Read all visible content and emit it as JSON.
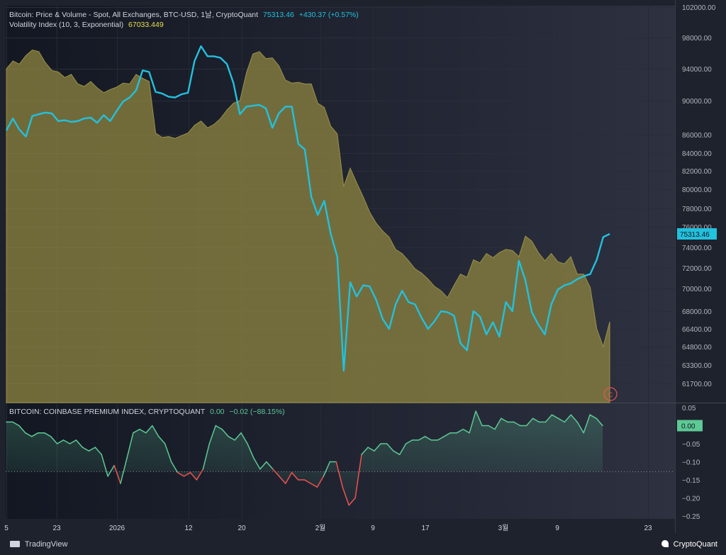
{
  "legend": {
    "price_title": "Bitcoin: Price & Volume - Spot, All Exchanges, BTC-USD, 1날, CryptoQuant",
    "price_value": "75313.46",
    "price_change": "+430.37 (+0.57%)",
    "vol_title": "Volatility Index (10, 3, Exponential)",
    "vol_value": "67033.449",
    "premium_title": "BITCOIN: COINBASE PREMIUM INDEX, CRYPTOQUANT",
    "premium_value": "0.00",
    "premium_change": "−0.02 (−88.15%)"
  },
  "footer": {
    "left_brand": "TradingView",
    "right_brand": "CryptoQuant"
  },
  "colors": {
    "background": "#1e222d",
    "price_line": "#22c1de",
    "volatility_fill": "#8a8240",
    "premium_up": "#5dc995",
    "premium_down": "#ef5350"
  },
  "icons": {
    "marker": "c-circle-icon",
    "tv_logo": "tradingview-logo-icon",
    "cq_logo": "cryptoquant-logo-icon"
  },
  "chart_data": [
    {
      "type": "line",
      "title": "Bitcoin: Price & Volume - Spot, All Exchanges, BTC-USD, 1날, CryptoQuant",
      "x_ticks": [
        "5",
        "23",
        "2026",
        "12",
        "20",
        "2월",
        "9",
        "17",
        "3월",
        "9",
        "23"
      ],
      "y_ticks": [
        "102000.00",
        "98000.00",
        "94000.00",
        "90000.00",
        "86000.00",
        "84000.00",
        "82000.00",
        "80000.00",
        "78000.00",
        "76000.00",
        "74000.00",
        "72000.00",
        "70000.00",
        "68000.00",
        "66400.00",
        "64800.00",
        "63300.00",
        "61700.00"
      ],
      "last_price_label": "75313.46",
      "series": [
        {
          "name": "Bitcoin: Price & Volume - Spot, All Exchanges, BTC-USD, 1날, CryptoQuant",
          "values": [
            86500,
            87900,
            86600,
            85800,
            88200,
            88400,
            88600,
            88500,
            87600,
            87700,
            87500,
            87600,
            87900,
            88000,
            87400,
            88300,
            87600,
            88800,
            89900,
            90400,
            91300,
            93800,
            93600,
            91100,
            90900,
            90500,
            90400,
            90800,
            91000,
            95000,
            96900,
            95600,
            95600,
            95400,
            94600,
            92200,
            88400,
            89300,
            89400,
            89500,
            89100,
            86800,
            88500,
            89300,
            89300,
            85000,
            84400,
            79200,
            77300,
            78800,
            75300,
            73100,
            62800,
            70600,
            69300,
            70300,
            70200,
            69000,
            67300,
            66400,
            68600,
            69800,
            68800,
            68600,
            67400,
            66400,
            67100,
            68000,
            67900,
            67600,
            65100,
            64500,
            68000,
            67500,
            65900,
            67000,
            65700,
            68800,
            68000,
            72700,
            70800,
            67900,
            66800,
            65900,
            68600,
            69900,
            70300,
            70500,
            70900,
            71200,
            71400,
            72800,
            75000,
            75313
          ]
        },
        {
          "name": "Volatility Index (10, 3, Exponential)",
          "values": [
            94000,
            95000,
            94600,
            95700,
            96400,
            96200,
            94800,
            93800,
            93600,
            92900,
            93300,
            92100,
            91800,
            92400,
            91600,
            91000,
            91400,
            91700,
            92200,
            92100,
            93300,
            92800,
            92400,
            86200,
            85700,
            85800,
            85600,
            85900,
            86200,
            87100,
            87600,
            86800,
            87200,
            87900,
            88900,
            89700,
            90000,
            93500,
            95900,
            96200,
            95300,
            95400,
            94400,
            92600,
            92200,
            92300,
            92100,
            92100,
            89700,
            89200,
            87000,
            86100,
            80300,
            82300,
            80700,
            79200,
            77600,
            76400,
            75600,
            75000,
            73800,
            73400,
            72700,
            71900,
            71500,
            70900,
            70200,
            69800,
            69200,
            70300,
            71400,
            71100,
            72800,
            72500,
            73400,
            73000,
            73500,
            73800,
            73700,
            73100,
            75100,
            74600,
            73500,
            72700,
            73400,
            72600,
            72400,
            73100,
            71400,
            71400,
            70100,
            66400,
            64800,
            67033
          ]
        }
      ]
    },
    {
      "type": "line",
      "title": "BITCOIN: COINBASE PREMIUM INDEX, CRYPTOQUANT",
      "y_ticks": [
        "0.05",
        "0.00",
        "−0.05",
        "−0.10",
        "−0.15",
        "−0.20",
        "−0.25"
      ],
      "last_value_label": "0.00",
      "series": [
        {
          "name": "BITCOIN: COINBASE PREMIUM INDEX, CRYPTOQUANT",
          "values": [
            0.01,
            0.01,
            0.0,
            -0.02,
            -0.03,
            -0.02,
            -0.02,
            -0.03,
            -0.05,
            -0.04,
            -0.05,
            -0.04,
            -0.06,
            -0.07,
            -0.06,
            -0.08,
            -0.14,
            -0.11,
            -0.16,
            -0.09,
            -0.02,
            -0.01,
            -0.02,
            0.0,
            -0.03,
            -0.05,
            -0.1,
            -0.13,
            -0.14,
            -0.13,
            -0.15,
            -0.12,
            -0.05,
            0.0,
            -0.01,
            -0.03,
            -0.04,
            -0.02,
            -0.05,
            -0.09,
            -0.12,
            -0.1,
            -0.12,
            -0.14,
            -0.16,
            -0.13,
            -0.15,
            -0.15,
            -0.16,
            -0.17,
            -0.14,
            -0.1,
            -0.1,
            -0.17,
            -0.22,
            -0.2,
            -0.08,
            -0.06,
            -0.07,
            -0.05,
            -0.05,
            -0.07,
            -0.08,
            -0.05,
            -0.04,
            -0.04,
            -0.03,
            -0.04,
            -0.04,
            -0.03,
            -0.02,
            -0.02,
            -0.01,
            -0.02,
            0.04,
            0.0,
            0.0,
            -0.01,
            0.02,
            0.01,
            0.01,
            0.0,
            0.0,
            0.02,
            0.01,
            0.01,
            0.03,
            0.02,
            0.01,
            0.03,
            0.01,
            -0.02,
            0.03,
            0.02,
            0.0
          ]
        }
      ]
    }
  ]
}
